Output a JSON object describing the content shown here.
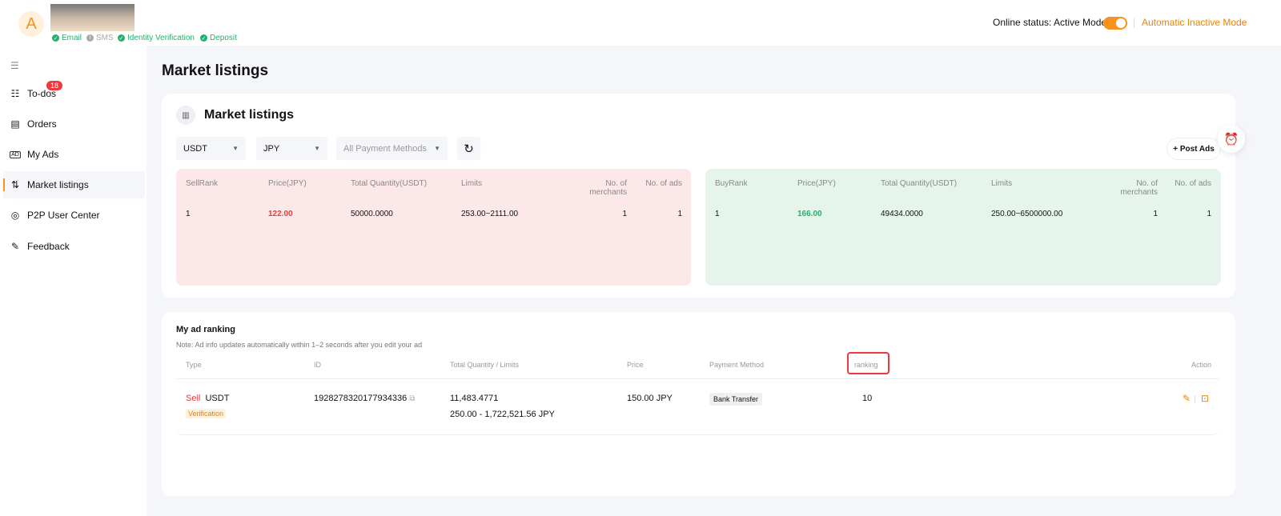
{
  "header": {
    "avatar_letter": "A",
    "verifications": [
      {
        "label": "Email",
        "ok": true
      },
      {
        "label": "SMS",
        "ok": false
      },
      {
        "label": "Identity Verification",
        "ok": true
      },
      {
        "label": "Deposit",
        "ok": true
      }
    ],
    "online_status": "Online status: Active Mode",
    "toggle_on": true,
    "auto_inactive": "Automatic Inactive Mode",
    "accent": "#f7931a"
  },
  "sidebar": {
    "items": [
      {
        "label": "To-dos",
        "badge": "18"
      },
      {
        "label": "Orders"
      },
      {
        "label": "My Ads"
      },
      {
        "label": "Market listings",
        "active": true
      },
      {
        "label": "P2P User Center"
      },
      {
        "label": "Feedback"
      }
    ]
  },
  "page_title": "Market listings",
  "market": {
    "title": "Market listings",
    "filters": {
      "crypto": "USDT",
      "fiat": "JPY",
      "payment": "All Payment Methods"
    },
    "post_ads": "+ Post Ads",
    "sell": {
      "headers": [
        "SellRank",
        "Price(JPY)",
        "Total Quantity(USDT)",
        "Limits",
        "No. of merchants",
        "No. of ads"
      ],
      "rows": [
        [
          "1",
          "122.00",
          "50000.0000",
          "253.00~2111.00",
          "1",
          "1"
        ]
      ]
    },
    "buy": {
      "headers": [
        "BuyRank",
        "Price(JPY)",
        "Total Quantity(USDT)",
        "Limits",
        "No. of merchants",
        "No. of ads"
      ],
      "rows": [
        [
          "1",
          "166.00",
          "49434.0000",
          "250.00~6500000.00",
          "1",
          "1"
        ]
      ]
    }
  },
  "ranking": {
    "title": "My ad ranking",
    "note": "Note: Ad info updates automatically within 1–2 seconds after you edit your ad",
    "headers": [
      "Type",
      "ID",
      "Total Quantity / Limits",
      "Price",
      "Payment Method",
      "ranking",
      "Action"
    ],
    "row": {
      "side": "Sell",
      "asset": "USDT",
      "tag": "Verification",
      "id": "1928278320177934336",
      "quantity": "11,483.4771",
      "limits": "250.00 - 1,722,521.56 JPY",
      "price": "150.00 JPY",
      "payment": "Bank Transfer",
      "ranking": "10"
    }
  }
}
